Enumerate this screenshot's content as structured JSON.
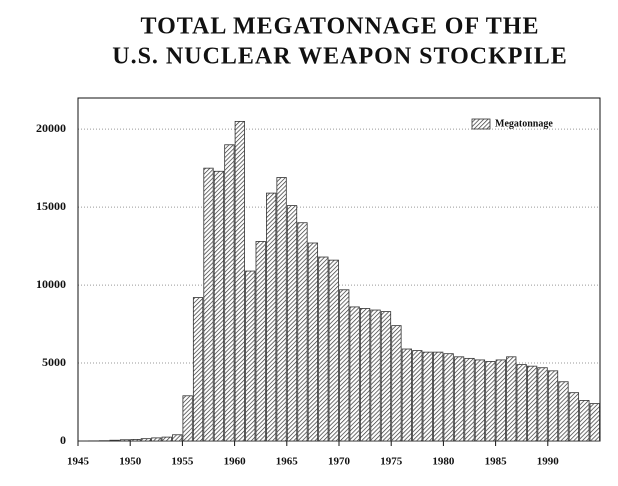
{
  "chart_data": {
    "type": "bar",
    "title": [
      "TOTAL MEGATONNAGE OF THE",
      "U.S. NUCLEAR WEAPON STOCKPILE"
    ],
    "x": [
      1945,
      1946,
      1947,
      1948,
      1949,
      1950,
      1951,
      1952,
      1953,
      1954,
      1955,
      1956,
      1957,
      1958,
      1959,
      1960,
      1961,
      1962,
      1963,
      1964,
      1965,
      1966,
      1967,
      1968,
      1969,
      1970,
      1971,
      1972,
      1973,
      1974,
      1975,
      1976,
      1977,
      1978,
      1979,
      1980,
      1981,
      1982,
      1983,
      1984,
      1985,
      1986,
      1987,
      1988,
      1989,
      1990,
      1991,
      1992,
      1993,
      1994
    ],
    "series": [
      {
        "name": "Megatonnage",
        "color": "#333333",
        "values": [
          5,
          10,
          20,
          50,
          80,
          100,
          150,
          200,
          250,
          400,
          2900,
          9200,
          17500,
          17300,
          19000,
          20500,
          10900,
          12800,
          15900,
          16900,
          15100,
          14000,
          12700,
          11800,
          11600,
          9700,
          8600,
          8500,
          8400,
          8300,
          7400,
          5900,
          5800,
          5700,
          5700,
          5600,
          5400,
          5300,
          5200,
          5100,
          5200,
          5400,
          4900,
          4800,
          4700,
          4500,
          3800,
          3100,
          2600,
          2400
        ]
      }
    ],
    "xlim": [
      1945,
      1995
    ],
    "xticks": [
      1945,
      1950,
      1955,
      1960,
      1965,
      1970,
      1975,
      1980,
      1985,
      1990
    ],
    "ylim": [
      0,
      22000
    ],
    "yticks": [
      0,
      5000,
      10000,
      15000,
      20000
    ],
    "grid": true,
    "legend": "upper right"
  }
}
